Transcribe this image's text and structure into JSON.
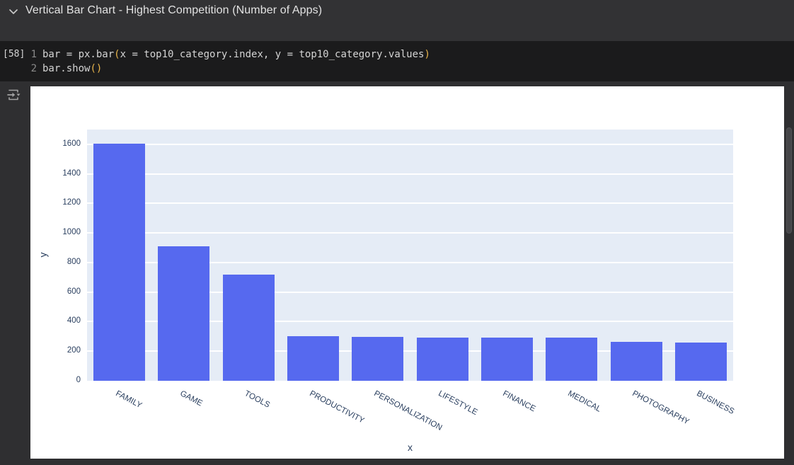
{
  "header": {
    "title": "Vertical Bar Chart - Highest Competition (Number of Apps)"
  },
  "code_cell": {
    "execution_count": "[58]",
    "lines": [
      {
        "number": "1",
        "tokens": [
          {
            "text": "bar = px.bar",
            "type": "plain"
          },
          {
            "text": "(",
            "type": "bracket"
          },
          {
            "text": "x = top10_category.index, y = top10_category.values",
            "type": "plain"
          },
          {
            "text": ")",
            "type": "bracket"
          }
        ]
      },
      {
        "number": "2",
        "tokens": [
          {
            "text": "bar.show",
            "type": "plain"
          },
          {
            "text": "()",
            "type": "bracket"
          }
        ]
      }
    ]
  },
  "chart_data": {
    "type": "bar",
    "title": "",
    "xlabel": "x",
    "ylabel": "y",
    "categories": [
      "FAMILY",
      "GAME",
      "TOOLS",
      "PRODUCTIVITY",
      "PERSONALIZATION",
      "LIFESTYLE",
      "FINANCE",
      "MEDICAL",
      "PHOTOGRAPHY",
      "BUSINESS"
    ],
    "values": [
      1606,
      911,
      719,
      301,
      296,
      294,
      293,
      290,
      264,
      261
    ],
    "yticks": [
      0,
      200,
      400,
      600,
      800,
      1000,
      1200,
      1400,
      1600
    ],
    "ylim": [
      0,
      1700
    ],
    "grid": "horizontal white gridlines",
    "legend": "none"
  },
  "icons": {
    "header_chevron": "chevron-down",
    "gutter_icon": "output-options"
  },
  "colors": {
    "bar": "#5669ef",
    "plot_background": "#e5ecf6",
    "axis_text": "#2a3f5f",
    "page_background": "#2f2f31",
    "header_background": "#323234",
    "code_background": "#1b1b1c",
    "code_text": "#d4d4d4",
    "bracket": "#e8b44b",
    "output_background": "#ffffff"
  }
}
